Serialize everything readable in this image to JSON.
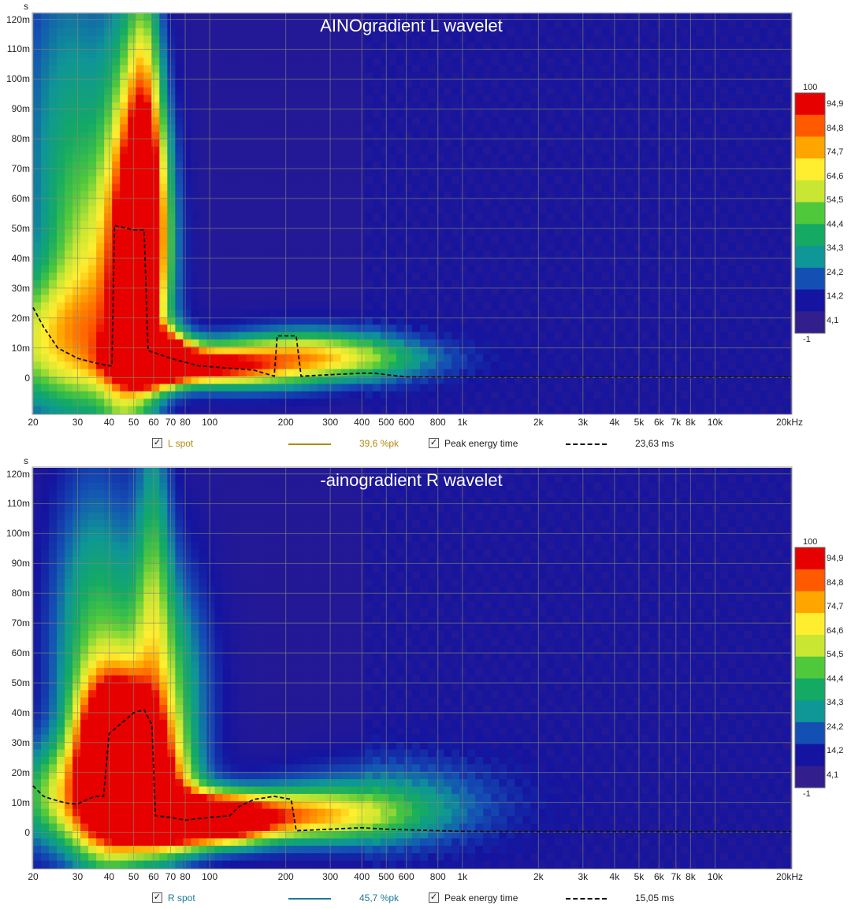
{
  "chart_data": [
    {
      "type": "heatmap",
      "title": "AINOgradient L wavelet",
      "ylabel": "s",
      "xscale": "log",
      "xlim": [
        20,
        20000
      ],
      "ylim": [
        -0.012,
        0.122
      ],
      "ytick_labels": [
        "120m",
        "110m",
        "100m",
        "90m",
        "80m",
        "70m",
        "60m",
        "50m",
        "40m",
        "30m",
        "20m",
        "10m",
        "0"
      ],
      "ytick_values": [
        0.12,
        0.11,
        0.1,
        0.09,
        0.08,
        0.07,
        0.06,
        0.05,
        0.04,
        0.03,
        0.02,
        0.01,
        0
      ],
      "xtick_labels": [
        "20",
        "30",
        "40",
        "50",
        "60",
        "70",
        "80",
        "100",
        "200",
        "300",
        "400",
        "500",
        "600",
        "800",
        "1k",
        "2k",
        "3k",
        "4k",
        "5k",
        "6k",
        "7k",
        "8k",
        "10k",
        "20kHz"
      ],
      "xtick_values": [
        20,
        30,
        40,
        50,
        60,
        70,
        80,
        100,
        200,
        300,
        400,
        500,
        600,
        800,
        1000,
        2000,
        3000,
        4000,
        5000,
        6000,
        7000,
        8000,
        10000,
        20000
      ],
      "colorbar": {
        "labels": [
          "100",
          "94,9",
          "84,8",
          "74,7",
          "64,6",
          "54,5",
          "44,4",
          "34,3",
          "24,2",
          "14,2",
          "4,1",
          "-1"
        ],
        "values": [
          100,
          94.9,
          84.8,
          74.7,
          64.6,
          54.5,
          44.4,
          34.3,
          24.2,
          14.2,
          4.1,
          -1
        ],
        "colors": [
          "#e60000",
          "#ff5a00",
          "#ffa500",
          "#ffee30",
          "#c8e632",
          "#50c83c",
          "#14aa64",
          "#0f9696",
          "#1450b4",
          "#1414a0",
          "#321e8c"
        ]
      },
      "peak_energy_time": {
        "x": [
          20,
          22,
          25,
          30,
          35,
          40,
          41,
          42,
          50,
          55,
          57,
          60,
          70,
          90,
          150,
          180,
          185,
          195,
          220,
          230,
          300,
          400,
          450,
          500,
          600,
          1000,
          20000
        ],
        "y": [
          0.0235,
          0.017,
          0.01,
          0.0065,
          0.005,
          0.004,
          0.004,
          0.051,
          0.0495,
          0.0495,
          0.009,
          0.0085,
          0.0065,
          0.004,
          0.0025,
          0.0005,
          0.014,
          0.014,
          0.014,
          0.0005,
          0.001,
          0.0015,
          0.0015,
          0.001,
          0.0003,
          0.0002,
          0.0002
        ]
      },
      "hotspots": [
        {
          "f": 56,
          "t": 0.045,
          "sf": 0.07,
          "st": 0.03,
          "v": 95
        },
        {
          "f": 57,
          "t": 0.008,
          "sf": 0.09,
          "st": 0.006,
          "v": 90
        },
        {
          "f": 62,
          "t": 0.006,
          "sf": 0.1,
          "st": 0.005,
          "v": 82
        },
        {
          "f": 55,
          "t": 0.08,
          "sf": 0.05,
          "st": 0.04,
          "v": 60
        },
        {
          "f": 90,
          "t": 0.004,
          "sf": 0.18,
          "st": 0.004,
          "v": 65
        },
        {
          "f": 22,
          "t": 0.012,
          "sf": 0.22,
          "st": 0.015,
          "v": 48
        },
        {
          "f": 35,
          "t": 0.03,
          "sf": 0.12,
          "st": 0.03,
          "v": 40
        },
        {
          "f": 45,
          "t": 0.04,
          "sf": 0.06,
          "st": 0.05,
          "v": 45
        },
        {
          "f": 140,
          "t": 0.004,
          "sf": 0.25,
          "st": 0.006,
          "v": 45
        },
        {
          "f": 250,
          "t": 0.009,
          "sf": 0.22,
          "st": 0.006,
          "v": 35
        },
        {
          "f": 400,
          "t": 0.006,
          "sf": 0.25,
          "st": 0.005,
          "v": 28
        },
        {
          "f": 28,
          "t": 0.08,
          "sf": 0.15,
          "st": 0.05,
          "v": 28
        }
      ],
      "legend": [
        {
          "label": "L  spot",
          "checked": true,
          "value": "39,6 %pk",
          "color": "#b08a10",
          "style": "solid"
        },
        {
          "label": "Peak energy time",
          "checked": true,
          "value": "23,63 ms",
          "color": "#111111",
          "style": "dashed"
        }
      ]
    },
    {
      "type": "heatmap",
      "title": "-ainogradient R wavelet",
      "ylabel": "s",
      "xscale": "log",
      "xlim": [
        20,
        20000
      ],
      "ylim": [
        -0.012,
        0.122
      ],
      "ytick_labels": [
        "120m",
        "110m",
        "100m",
        "90m",
        "80m",
        "70m",
        "60m",
        "50m",
        "40m",
        "30m",
        "20m",
        "10m",
        "0"
      ],
      "ytick_values": [
        0.12,
        0.11,
        0.1,
        0.09,
        0.08,
        0.07,
        0.06,
        0.05,
        0.04,
        0.03,
        0.02,
        0.01,
        0
      ],
      "xtick_labels": [
        "20",
        "30",
        "40",
        "50",
        "60",
        "70",
        "80",
        "100",
        "200",
        "300",
        "400",
        "500",
        "600",
        "800",
        "1k",
        "2k",
        "3k",
        "4k",
        "5k",
        "6k",
        "7k",
        "8k",
        "10k",
        "20kHz"
      ],
      "xtick_values": [
        20,
        30,
        40,
        50,
        60,
        70,
        80,
        100,
        200,
        300,
        400,
        500,
        600,
        800,
        1000,
        2000,
        3000,
        4000,
        5000,
        6000,
        7000,
        8000,
        10000,
        20000
      ],
      "colorbar": {
        "labels": [
          "100",
          "94,9",
          "84,8",
          "74,7",
          "64,6",
          "54,5",
          "44,4",
          "34,3",
          "24,2",
          "14,2",
          "4,1",
          "-1"
        ],
        "values": [
          100,
          94.9,
          84.8,
          74.7,
          64.6,
          54.5,
          44.4,
          34.3,
          24.2,
          14.2,
          4.1,
          -1
        ],
        "colors": [
          "#e60000",
          "#ff5a00",
          "#ffa500",
          "#ffee30",
          "#c8e632",
          "#50c83c",
          "#14aa64",
          "#0f9696",
          "#1450b4",
          "#1414a0",
          "#321e8c"
        ]
      },
      "peak_energy_time": {
        "x": [
          20,
          22,
          25,
          28,
          30,
          35,
          38,
          40,
          50,
          55,
          59,
          61,
          70,
          80,
          100,
          120,
          130,
          150,
          180,
          210,
          220,
          300,
          400,
          500,
          1000,
          2000,
          20000
        ],
        "y": [
          0.0155,
          0.012,
          0.0105,
          0.0095,
          0.0095,
          0.012,
          0.012,
          0.033,
          0.04,
          0.041,
          0.036,
          0.0055,
          0.005,
          0.004,
          0.005,
          0.0055,
          0.0085,
          0.011,
          0.012,
          0.011,
          0.0005,
          0.001,
          0.0015,
          0.001,
          0.0003,
          0.0002,
          0.0002
        ]
      },
      "hotspots": [
        {
          "f": 40,
          "t": 0.022,
          "sf": 0.09,
          "st": 0.02,
          "v": 95
        },
        {
          "f": 47,
          "t": 0.032,
          "sf": 0.1,
          "st": 0.012,
          "v": 85
        },
        {
          "f": 60,
          "t": 0.012,
          "sf": 0.1,
          "st": 0.012,
          "v": 80
        },
        {
          "f": 75,
          "t": 0.004,
          "sf": 0.18,
          "st": 0.006,
          "v": 88
        },
        {
          "f": 110,
          "t": 0.004,
          "sf": 0.14,
          "st": 0.005,
          "v": 70
        },
        {
          "f": 28,
          "t": 0.012,
          "sf": 0.18,
          "st": 0.012,
          "v": 50
        },
        {
          "f": 65,
          "t": 0.045,
          "sf": 0.12,
          "st": 0.03,
          "v": 45
        },
        {
          "f": 35,
          "t": 0.06,
          "sf": 0.12,
          "st": 0.04,
          "v": 40
        },
        {
          "f": 60,
          "t": 0.09,
          "sf": 0.05,
          "st": 0.04,
          "v": 30
        },
        {
          "f": 160,
          "t": 0.006,
          "sf": 0.25,
          "st": 0.006,
          "v": 40
        },
        {
          "f": 280,
          "t": 0.005,
          "sf": 0.25,
          "st": 0.006,
          "v": 35
        },
        {
          "f": 500,
          "t": 0.01,
          "sf": 0.3,
          "st": 0.01,
          "v": 25
        }
      ],
      "legend": [
        {
          "label": "R spot",
          "checked": true,
          "value": "45,7 %pk",
          "color": "#1a7a96",
          "style": "solid"
        },
        {
          "label": "Peak energy time",
          "checked": true,
          "value": "15,05 ms",
          "color": "#111111",
          "style": "dashed"
        }
      ]
    }
  ]
}
